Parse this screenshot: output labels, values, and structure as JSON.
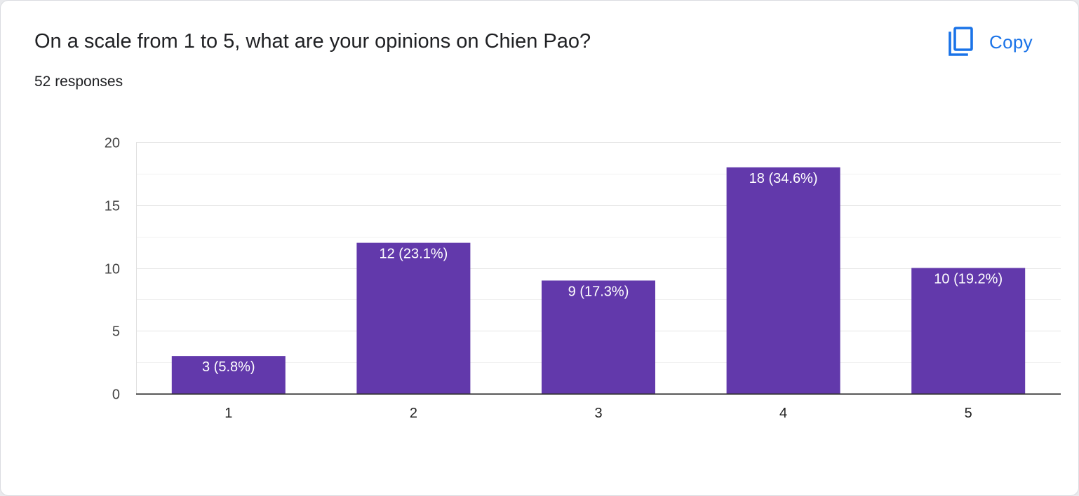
{
  "question": {
    "title": "On a scale from 1 to 5, what are your opinions on Chien Pao?",
    "responses_label": "52 responses"
  },
  "actions": {
    "copy_label": "Copy",
    "copy_icon": "copy-icon"
  },
  "colors": {
    "bar": "#6239ab",
    "accent": "#1a73e8",
    "gridline": "#e6e6e6",
    "axis": "#333333"
  },
  "chart_data": {
    "type": "bar",
    "categories": [
      "1",
      "2",
      "3",
      "4",
      "5"
    ],
    "values": [
      3,
      12,
      9,
      18,
      10
    ],
    "data_labels": [
      "3 (5.8%)",
      "12 (23.1%)",
      "9 (17.3%)",
      "18 (34.6%)",
      "10 (19.2%)"
    ],
    "title": "",
    "xlabel": "",
    "ylabel": "",
    "ylim": [
      0,
      20
    ],
    "yticks": [
      0,
      5,
      10,
      15,
      20
    ],
    "grid": true,
    "legend": "none"
  }
}
